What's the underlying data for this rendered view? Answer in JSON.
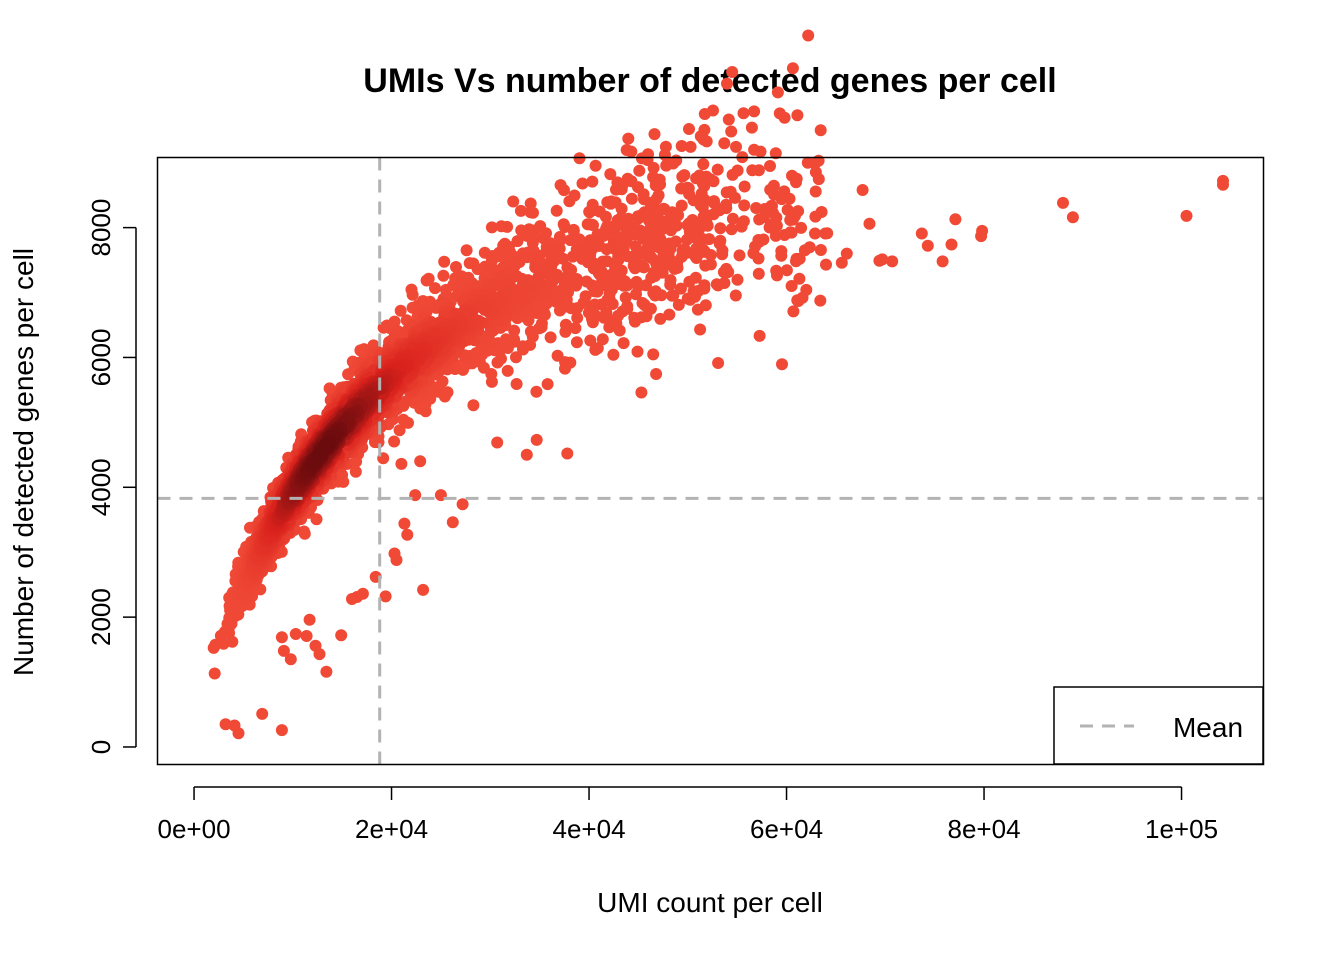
{
  "chart_data": {
    "type": "scatter",
    "title": "UMIs Vs number of detected genes per cell",
    "xlabel": "UMI count per cell",
    "ylabel": "Number of detected genes per cell",
    "xlim": [
      -3700,
      108300
    ],
    "ylim": [
      -270,
      9080
    ],
    "x_ticks": [
      {
        "value": 0,
        "label": "0e+00"
      },
      {
        "value": 20000,
        "label": "2e+04"
      },
      {
        "value": 40000,
        "label": "4e+04"
      },
      {
        "value": 60000,
        "label": "6e+04"
      },
      {
        "value": 80000,
        "label": "8e+04"
      },
      {
        "value": 100000,
        "label": "1e+05"
      }
    ],
    "y_ticks": [
      {
        "value": 0,
        "label": "0"
      },
      {
        "value": 2000,
        "label": "2000"
      },
      {
        "value": 4000,
        "label": "4000"
      },
      {
        "value": 6000,
        "label": "6000"
      },
      {
        "value": 8000,
        "label": "8000"
      }
    ],
    "mean_lines": {
      "x": 18800,
      "y": 3830,
      "color": "#b3b3b3",
      "style": "dashed"
    },
    "legend": {
      "position": "bottom-right",
      "entries": [
        {
          "label": "Mean",
          "color": "#b3b3b3",
          "style": "dashed"
        }
      ]
    },
    "grid": false,
    "colors": {
      "low_density": "#f04a37",
      "mid_density": "#d9211c",
      "high_density": "#6a0b0e"
    },
    "outlier_points": [
      [
        104200,
        8720
      ],
      [
        104200,
        8660
      ],
      [
        100500,
        8180
      ],
      [
        89000,
        8160
      ],
      [
        88000,
        8380
      ],
      [
        67700,
        8580
      ],
      [
        79800,
        7950
      ],
      [
        79700,
        7870
      ],
      [
        77100,
        8130
      ],
      [
        76700,
        7740
      ],
      [
        75800,
        7480
      ],
      [
        74300,
        7720
      ],
      [
        73700,
        7910
      ],
      [
        70700,
        7480
      ],
      [
        69700,
        7510
      ],
      [
        69400,
        7490
      ],
      [
        68400,
        8060
      ],
      [
        66100,
        7600
      ],
      [
        65600,
        7460
      ],
      [
        64000,
        7430
      ],
      [
        62000,
        7040
      ],
      [
        61200,
        6870
      ],
      [
        60700,
        6710
      ],
      [
        23200,
        2420
      ],
      [
        26200,
        3460
      ],
      [
        27200,
        3740
      ],
      [
        21300,
        3440
      ],
      [
        21600,
        3270
      ],
      [
        20500,
        2880
      ],
      [
        20300,
        2980
      ],
      [
        19400,
        2320
      ],
      [
        18400,
        2620
      ],
      [
        17100,
        2360
      ],
      [
        16500,
        2310
      ],
      [
        16000,
        2280
      ],
      [
        14900,
        1720
      ],
      [
        13400,
        1160
      ],
      [
        12700,
        1430
      ],
      [
        12300,
        1560
      ],
      [
        11700,
        1960
      ],
      [
        11400,
        1710
      ],
      [
        10300,
        1740
      ],
      [
        9800,
        1350
      ],
      [
        9100,
        1480
      ],
      [
        8900,
        1690
      ],
      [
        8900,
        260
      ],
      [
        6900,
        510
      ],
      [
        4500,
        210
      ],
      [
        4100,
        330
      ],
      [
        3200,
        350
      ],
      [
        45300,
        5460
      ],
      [
        38100,
        5920
      ],
      [
        35800,
        5590
      ],
      [
        34700,
        4730
      ],
      [
        33700,
        4500
      ],
      [
        37800,
        4520
      ],
      [
        30700,
        4690
      ],
      [
        26000,
        6860
      ],
      [
        25000,
        3880
      ],
      [
        22900,
        4400
      ],
      [
        22400,
        3880
      ],
      [
        21300,
        5940
      ],
      [
        21000,
        4360
      ],
      [
        14000,
        4820
      ],
      [
        14700,
        4800
      ],
      [
        16200,
        4810
      ],
      [
        17200,
        4870
      ],
      [
        20800,
        5300
      ]
    ]
  }
}
